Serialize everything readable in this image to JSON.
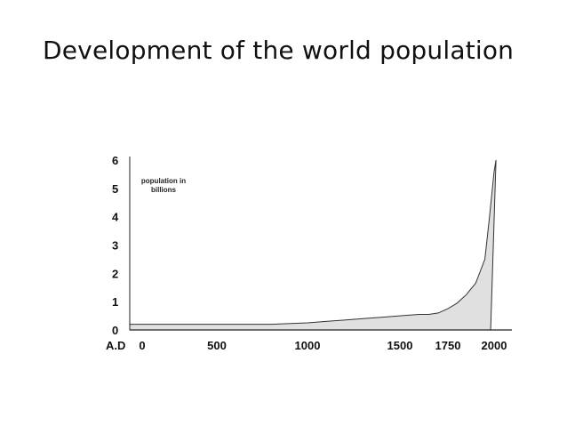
{
  "slide": {
    "title": "Development of the world population"
  },
  "chart_data": {
    "type": "area",
    "title": "Development of the world population",
    "annotation_lines": [
      "population in",
      "billions"
    ],
    "x_axis_prefix": "A.D",
    "x_ticks": [
      0,
      500,
      1000,
      1500,
      1750,
      2000
    ],
    "x_tick_labels": [
      "0",
      "500",
      "1000",
      "1500",
      "1750",
      "2000"
    ],
    "y_ticks": [
      0,
      1,
      2,
      3,
      4,
      5,
      6
    ],
    "y_tick_labels": [
      "0",
      "1",
      "2",
      "3",
      "4",
      "5",
      "6"
    ],
    "ylim": [
      0,
      6
    ],
    "grid": false,
    "fill_color": "#e0e0e0",
    "line_color": "#333333",
    "series": [
      {
        "x": [
          0,
          200,
          400,
          600,
          800,
          1000,
          1100,
          1200,
          1300,
          1400,
          1500,
          1600,
          1650,
          1700,
          1750,
          1800,
          1850,
          1900,
          1950,
          1975,
          2000,
          2010
        ],
        "values": [
          0.2,
          0.2,
          0.2,
          0.2,
          0.2,
          0.25,
          0.3,
          0.35,
          0.4,
          0.45,
          0.5,
          0.55,
          0.55,
          0.6,
          0.75,
          0.95,
          1.25,
          1.65,
          2.5,
          4.0,
          5.6,
          6.0
        ]
      }
    ]
  }
}
